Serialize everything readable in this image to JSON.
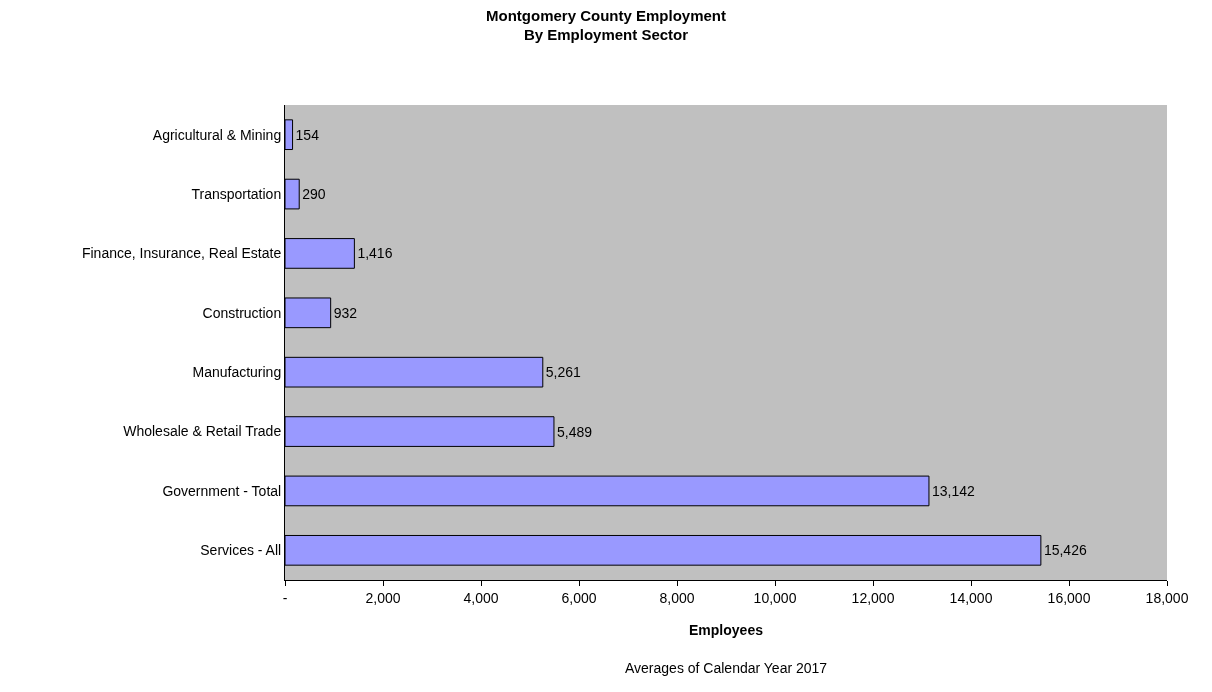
{
  "chart_data": {
    "type": "bar",
    "orientation": "horizontal",
    "title": "Montgomery County Employment\nBy Employment Sector",
    "xlabel": "Employees",
    "categories": [
      "Agricultural & Mining",
      "Transportation",
      "Finance, Insurance, Real Estate",
      "Construction",
      "Manufacturing",
      "Wholesale & Retail Trade",
      "Government - Total",
      "Services - All"
    ],
    "values": [
      154,
      290,
      1416,
      932,
      5261,
      5489,
      13142,
      15426
    ],
    "value_labels": [
      "154",
      "290",
      "1,416",
      "932",
      "5,261",
      "5,489",
      "13,142",
      "15,426"
    ],
    "color": "#9999ff",
    "xlim": [
      0,
      18000
    ],
    "xticks": [
      {
        "value": 0,
        "label": "-"
      },
      {
        "value": 2000,
        "label": "2,000"
      },
      {
        "value": 4000,
        "label": "4,000"
      },
      {
        "value": 6000,
        "label": "6,000"
      },
      {
        "value": 8000,
        "label": "8,000"
      },
      {
        "value": 10000,
        "label": "10,000"
      },
      {
        "value": 12000,
        "label": "12,000"
      },
      {
        "value": 14000,
        "label": "14,000"
      },
      {
        "value": 16000,
        "label": "16,000"
      },
      {
        "value": 18000,
        "label": "18,000"
      }
    ],
    "grid": false,
    "annotations": [
      "Averages of Calendar Year 2017"
    ]
  }
}
